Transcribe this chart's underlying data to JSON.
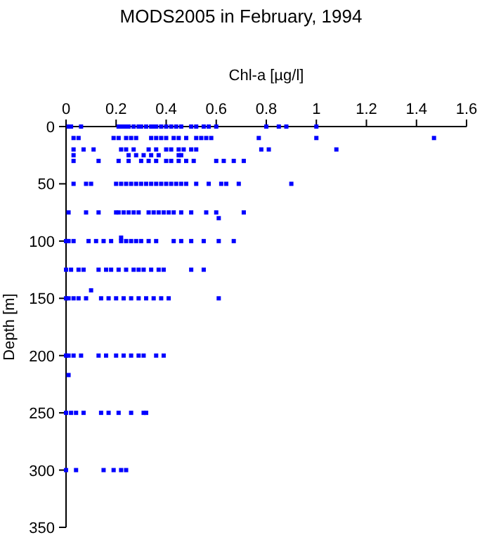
{
  "chart_data": {
    "type": "scatter",
    "title": "MODS2005 in February, 1994",
    "xlabel": "Chl-a [µg/l]",
    "ylabel": "Depth [m]",
    "xlim": [
      0,
      1.6
    ],
    "xticks": [
      0,
      0.2,
      0.4,
      0.6,
      0.8,
      1,
      1.2,
      1.4,
      1.6
    ],
    "ylim": [
      350,
      0
    ],
    "yticks": [
      0,
      50,
      100,
      150,
      200,
      250,
      300,
      350
    ],
    "grid": false,
    "marker": "square",
    "series": [
      {
        "color": "#0000ff",
        "x": [
          0.01,
          0.02,
          0.06,
          0.21,
          0.22,
          0.23,
          0.24,
          0.25,
          0.27,
          0.29,
          0.3,
          0.32,
          0.34,
          0.35,
          0.36,
          0.38,
          0.4,
          0.42,
          0.44,
          0.46,
          0.5,
          0.52,
          0.55,
          0.57,
          0.6,
          0.8,
          0.85,
          0.88,
          1.0
        ],
        "values": [
          0,
          0,
          0,
          0,
          0,
          0,
          0,
          0,
          0,
          0,
          0,
          0,
          0,
          0,
          0,
          0,
          0,
          0,
          0,
          0,
          0,
          0,
          0,
          0,
          0,
          0,
          0,
          0,
          0
        ]
      },
      {
        "color": "#0000ff",
        "x": [
          0.03,
          0.05,
          0.19,
          0.21,
          0.24,
          0.26,
          0.28,
          0.34,
          0.36,
          0.38,
          0.4,
          0.43,
          0.45,
          0.48,
          0.52,
          0.54,
          0.56,
          0.58,
          0.77,
          1.0,
          1.47
        ],
        "values": [
          10,
          10,
          10,
          10,
          10,
          10,
          10,
          10,
          10,
          10,
          10,
          10,
          10,
          10,
          10,
          10,
          10,
          10,
          10,
          10,
          10
        ]
      },
      {
        "color": "#0000ff",
        "x": [
          0.03,
          0.07,
          0.11,
          0.22,
          0.24,
          0.27,
          0.33,
          0.36,
          0.4,
          0.42,
          0.45,
          0.47,
          0.5,
          0.52,
          0.78,
          0.81,
          1.08
        ],
        "values": [
          20,
          20,
          20,
          20,
          20,
          20,
          20,
          20,
          20,
          20,
          20,
          20,
          20,
          20,
          20,
          20,
          20
        ]
      },
      {
        "color": "#0000ff",
        "x": [
          0.03,
          0.25,
          0.28,
          0.31,
          0.34,
          0.37,
          0.45,
          0.46
        ],
        "values": [
          25,
          25,
          25,
          25,
          25,
          25,
          25,
          25
        ]
      },
      {
        "color": "#0000ff",
        "x": [
          0.03,
          0.13,
          0.21,
          0.25,
          0.3,
          0.33,
          0.36,
          0.4,
          0.42,
          0.45,
          0.48,
          0.51,
          0.6,
          0.63,
          0.67,
          0.71
        ],
        "values": [
          30,
          30,
          30,
          30,
          30,
          30,
          30,
          30,
          30,
          30,
          30,
          30,
          30,
          30,
          30,
          30
        ]
      },
      {
        "color": "#0000ff",
        "x": [
          0.03,
          0.08,
          0.1,
          0.2,
          0.22,
          0.24,
          0.26,
          0.28,
          0.3,
          0.32,
          0.34,
          0.36,
          0.38,
          0.4,
          0.42,
          0.44,
          0.46,
          0.48,
          0.52,
          0.57,
          0.62,
          0.64,
          0.69,
          0.9
        ],
        "values": [
          50,
          50,
          50,
          50,
          50,
          50,
          50,
          50,
          50,
          50,
          50,
          50,
          50,
          50,
          50,
          50,
          50,
          50,
          50,
          50,
          50,
          50,
          50,
          50
        ]
      },
      {
        "color": "#0000ff",
        "x": [
          0.01,
          0.08,
          0.13,
          0.2,
          0.21,
          0.23,
          0.25,
          0.27,
          0.29,
          0.33,
          0.35,
          0.37,
          0.39,
          0.41,
          0.43,
          0.46,
          0.5,
          0.56,
          0.6,
          0.71,
          0.61,
          0.22
        ],
        "values": [
          75,
          75,
          75,
          75,
          75,
          75,
          75,
          75,
          75,
          75,
          75,
          75,
          75,
          75,
          75,
          75,
          75,
          75,
          75,
          75,
          80,
          97
        ]
      },
      {
        "color": "#0000ff",
        "x": [
          0,
          0.01,
          0.03,
          0.09,
          0.12,
          0.15,
          0.18,
          0.22,
          0.24,
          0.26,
          0.28,
          0.3,
          0.33,
          0.36,
          0.43,
          0.46,
          0.5,
          0.55,
          0.61,
          0.67
        ],
        "values": [
          100,
          100,
          100,
          100,
          100,
          100,
          100,
          100,
          100,
          100,
          100,
          100,
          100,
          100,
          100,
          100,
          100,
          100,
          100,
          100
        ]
      },
      {
        "color": "#0000ff",
        "x": [
          0,
          0.02,
          0.05,
          0.07,
          0.13,
          0.16,
          0.18,
          0.21,
          0.24,
          0.27,
          0.29,
          0.31,
          0.34,
          0.37,
          0.39,
          0.5,
          0.55,
          0.1
        ],
        "values": [
          125,
          125,
          125,
          125,
          125,
          125,
          125,
          125,
          125,
          125,
          125,
          125,
          125,
          125,
          125,
          125,
          125,
          143
        ]
      },
      {
        "color": "#0000ff",
        "x": [
          0,
          0.01,
          0.03,
          0.05,
          0.08,
          0.14,
          0.17,
          0.2,
          0.23,
          0.26,
          0.29,
          0.32,
          0.35,
          0.38,
          0.41,
          0.61
        ],
        "values": [
          150,
          150,
          150,
          150,
          150,
          150,
          150,
          150,
          150,
          150,
          150,
          150,
          150,
          150,
          150,
          150
        ]
      },
      {
        "color": "#0000ff",
        "x": [
          0,
          0.01,
          0.03,
          0.06,
          0.13,
          0.16,
          0.2,
          0.23,
          0.26,
          0.29,
          0.31,
          0.36,
          0.39,
          0.01
        ],
        "values": [
          200,
          200,
          200,
          200,
          200,
          200,
          200,
          200,
          200,
          200,
          200,
          200,
          200,
          217
        ]
      },
      {
        "color": "#0000ff",
        "x": [
          0,
          0.02,
          0.04,
          0.07,
          0.14,
          0.17,
          0.21,
          0.26,
          0.31,
          0.32
        ],
        "values": [
          250,
          250,
          250,
          250,
          250,
          250,
          250,
          250,
          250,
          250
        ]
      },
      {
        "color": "#0000ff",
        "x": [
          0,
          0.04,
          0.15,
          0.19,
          0.22,
          0.24
        ],
        "values": [
          300,
          300,
          300,
          300,
          300,
          300
        ]
      }
    ]
  }
}
